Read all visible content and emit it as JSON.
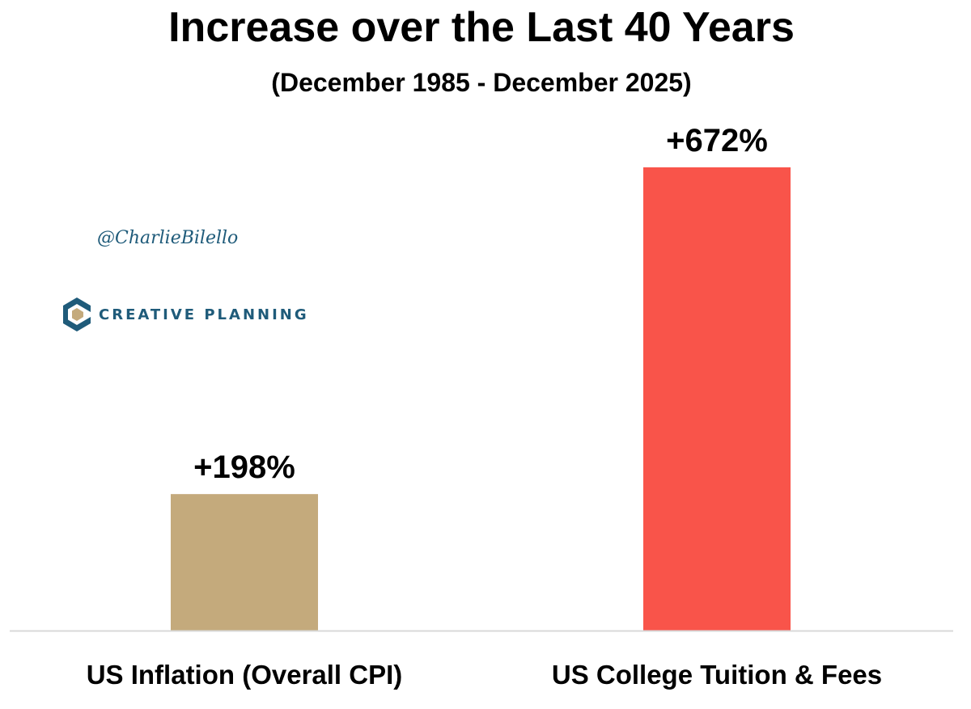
{
  "chart_data": {
    "type": "bar",
    "title": "Increase over the Last 40 Years",
    "subtitle": "(December 1985 - December 2025)",
    "categories": [
      "US Inflation (Overall CPI)",
      "US College Tuition & Fees"
    ],
    "values": [
      198,
      672
    ],
    "value_labels": [
      "+198%",
      "+672%"
    ],
    "bar_colors": [
      "#c4aa7c",
      "#f9544a"
    ],
    "xlabel": "",
    "ylabel": "",
    "ylim": [
      0,
      672
    ],
    "grid": false,
    "legend": "none"
  },
  "branding": {
    "handle": "@CharlieBilello",
    "logo_text": "CREATIVE PLANNING",
    "logo_icon": "creative-planning-logo-icon",
    "brand_color": "#1f5b7a"
  }
}
